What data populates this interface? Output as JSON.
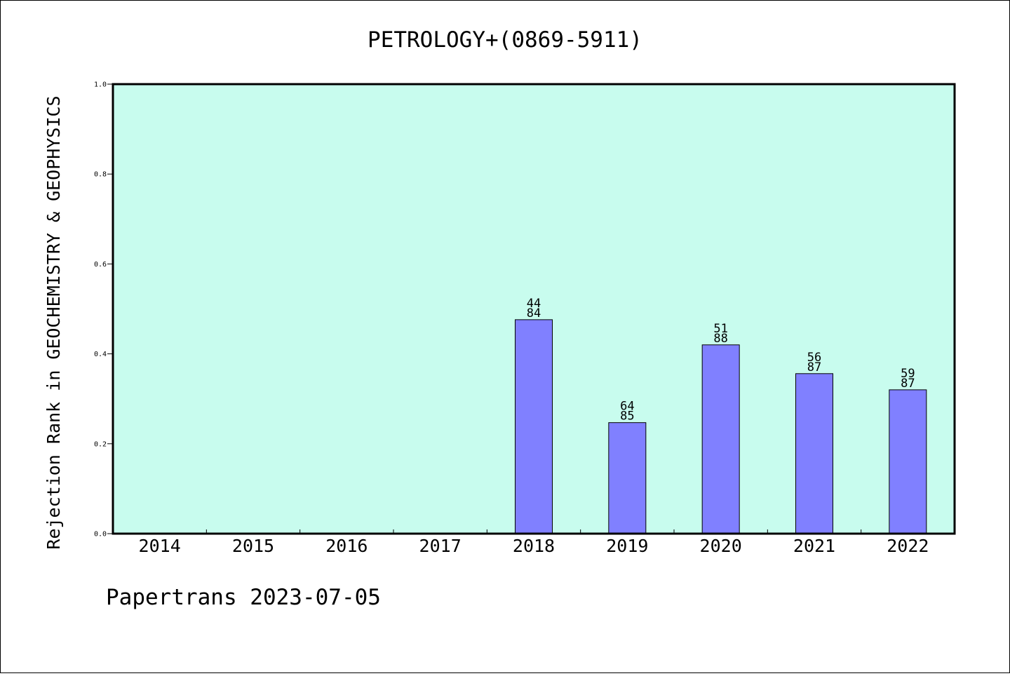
{
  "chart_data": {
    "type": "bar",
    "title": "PETROLOGY+(0869-5911)",
    "xlabel": "",
    "ylabel": "Rejection Rank in GEOCHEMISTRY & GEOPHYSICS",
    "categories": [
      "2014",
      "2015",
      "2016",
      "2017",
      "2018",
      "2019",
      "2020",
      "2021",
      "2022"
    ],
    "values": [
      null,
      null,
      null,
      null,
      0.476,
      0.247,
      0.42,
      0.356,
      0.32
    ],
    "bar_labels": [
      null,
      null,
      null,
      null,
      [
        "44",
        "84"
      ],
      [
        "64",
        "85"
      ],
      [
        "51",
        "88"
      ],
      [
        "56",
        "87"
      ],
      [
        "59",
        "87"
      ]
    ],
    "yticks": [
      "0.0",
      "0.2",
      "0.4",
      "0.6",
      "0.8",
      "1.0"
    ],
    "ylim": [
      0,
      1
    ],
    "grid": false,
    "legend": "none",
    "colors": {
      "plot_background": "#c8fcee",
      "bar_fill": "#8080ff",
      "bar_stroke": "#000000"
    }
  },
  "footer": "Papertrans 2023-07-05"
}
